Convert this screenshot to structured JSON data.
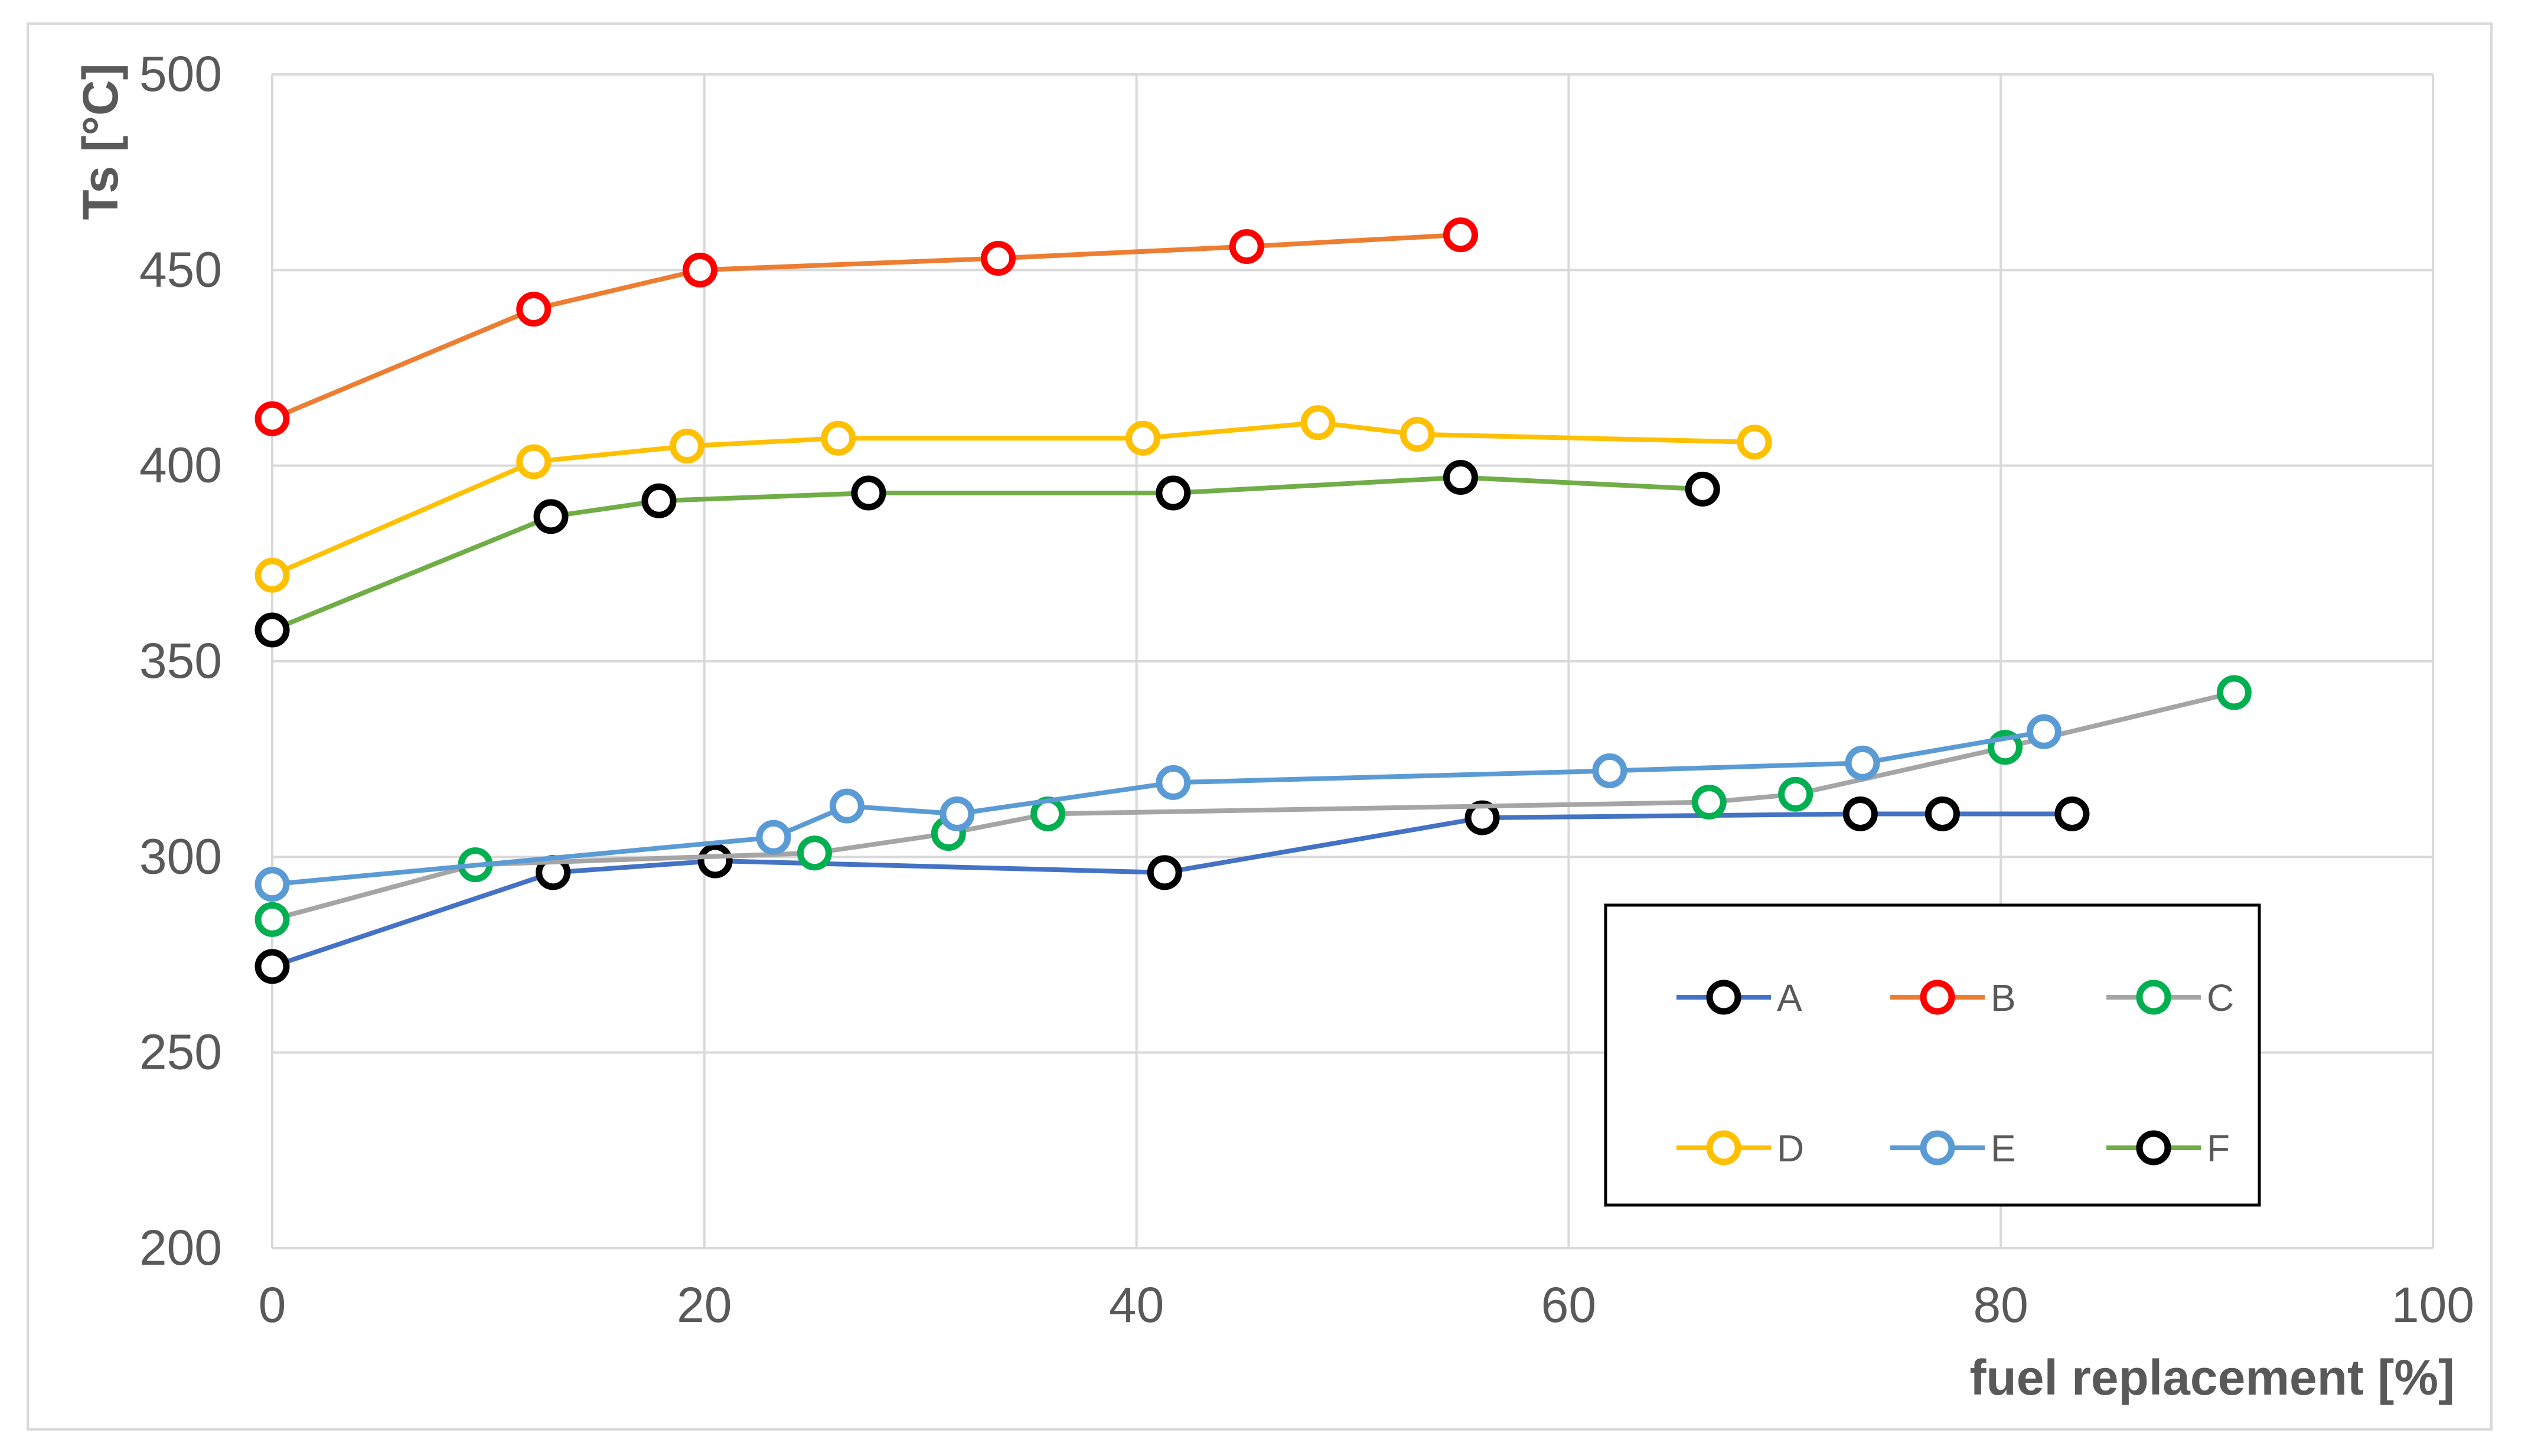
{
  "chart_data": {
    "type": "line",
    "title": "",
    "xlabel": "fuel replacement [%]",
    "ylabel": "Ts [°C]",
    "xlim": [
      0,
      100
    ],
    "ylim": [
      200,
      500
    ],
    "x_ticks": [
      "0",
      "20",
      "40",
      "60",
      "80",
      "100"
    ],
    "y_ticks": [
      "200",
      "250",
      "300",
      "350",
      "400",
      "450",
      "500"
    ],
    "grid": true,
    "legend_position": "lower-right",
    "series": [
      {
        "name": "A",
        "line_color": "#4472c4",
        "marker_color": "#000000",
        "x": [
          0,
          13,
          20.5,
          41.3,
          56,
          73.5,
          77.3,
          83.3
        ],
        "y": [
          272,
          296,
          299,
          296,
          310,
          311,
          311,
          311
        ]
      },
      {
        "name": "B",
        "line_color": "#ed7d31",
        "marker_color": "#ff0000",
        "x": [
          0,
          12.1,
          19.8,
          33.6,
          45.1,
          55
        ],
        "y": [
          412,
          440,
          450,
          453,
          456,
          459
        ]
      },
      {
        "name": "C",
        "line_color": "#a5a5a5",
        "marker_color": "#00b050",
        "x": [
          0,
          9.4,
          25.1,
          31.3,
          35.9,
          66.5,
          70.5,
          80.2,
          90.8
        ],
        "y": [
          284,
          298,
          301,
          306,
          311,
          314,
          316,
          328,
          342
        ]
      },
      {
        "name": "D",
        "line_color": "#ffc000",
        "marker_color": "#ffc000",
        "x": [
          0,
          12.1,
          19.2,
          26.2,
          40.3,
          48.4,
          53,
          68.6
        ],
        "y": [
          372,
          401,
          405,
          407,
          407,
          411,
          408,
          406
        ]
      },
      {
        "name": "E",
        "line_color": "#5b9bd5",
        "marker_color": "#5b9bd5",
        "x": [
          0,
          23.2,
          26.6,
          31.7,
          41.7,
          61.9,
          73.6,
          82
        ],
        "y": [
          293,
          305,
          313,
          311,
          319,
          322,
          324,
          332
        ]
      },
      {
        "name": "F",
        "line_color": "#70ad47",
        "marker_color": "#000000",
        "x": [
          0,
          12.9,
          17.9,
          27.6,
          41.7,
          55,
          66.2
        ],
        "y": [
          358,
          387,
          391,
          393,
          393,
          397,
          394
        ]
      }
    ]
  }
}
